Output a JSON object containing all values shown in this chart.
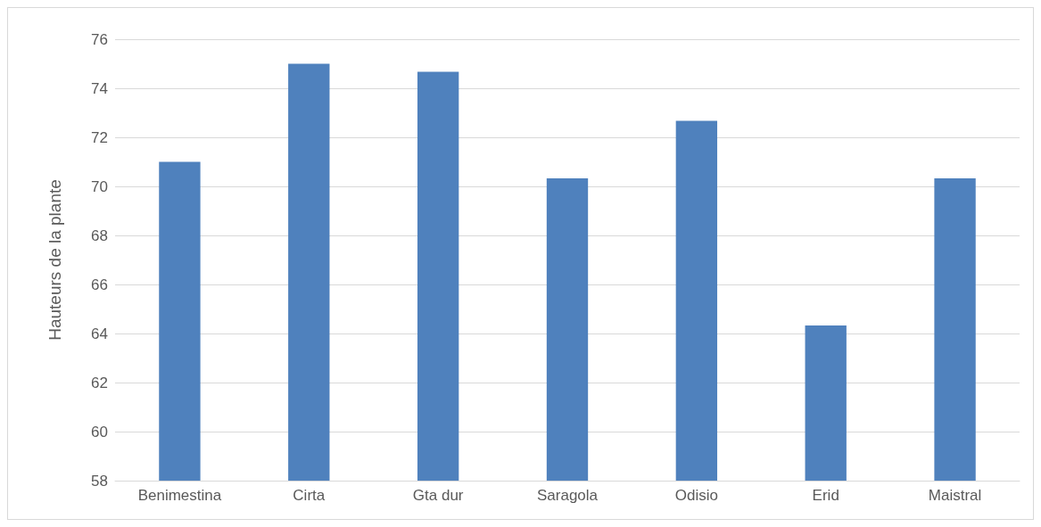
{
  "chart_data": {
    "type": "bar",
    "ylabel": "Hauteurs de la plante",
    "categories": [
      "Benimestina",
      "Cirta",
      "Gta dur",
      "Saragola",
      "Odisio",
      "Erid",
      "Maistral"
    ],
    "values": [
      71.0,
      75.0,
      74.67,
      70.33,
      72.67,
      64.33,
      70.33
    ],
    "color": "#4f81bd",
    "ylim": [
      58,
      76
    ],
    "yticks": [
      58,
      60,
      62,
      64,
      66,
      68,
      70,
      72,
      74,
      76
    ],
    "grid": "y"
  }
}
